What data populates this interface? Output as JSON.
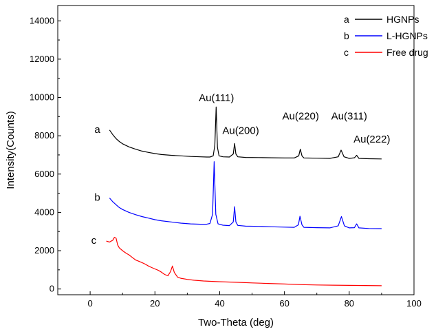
{
  "chart_data": {
    "type": "line",
    "xlabel": "Two-Theta (deg)",
    "ylabel": "Intensity(Counts)",
    "xlim": [
      -10,
      100
    ],
    "ylim": [
      -300,
      14800
    ],
    "xticks": [
      0,
      20,
      40,
      60,
      80,
      100
    ],
    "yticks": [
      0,
      2000,
      4000,
      6000,
      8000,
      10000,
      12000,
      14000
    ],
    "legend_position": "top-right",
    "grid": false,
    "series": [
      {
        "name": "HGNPs",
        "legend_key": "a",
        "tag": "a",
        "color": "#000000",
        "points": [
          [
            6,
            8300
          ],
          [
            7,
            8050
          ],
          [
            8,
            7850
          ],
          [
            9,
            7700
          ],
          [
            10,
            7580
          ],
          [
            12,
            7420
          ],
          [
            14,
            7300
          ],
          [
            16,
            7200
          ],
          [
            18,
            7130
          ],
          [
            20,
            7070
          ],
          [
            22,
            7020
          ],
          [
            25,
            6980
          ],
          [
            28,
            6950
          ],
          [
            31,
            6920
          ],
          [
            34,
            6900
          ],
          [
            36,
            6890
          ],
          [
            37,
            6890
          ],
          [
            38,
            6950
          ],
          [
            38.5,
            7500
          ],
          [
            38.9,
            9500
          ],
          [
            39.3,
            7400
          ],
          [
            39.8,
            6950
          ],
          [
            41,
            6900
          ],
          [
            43,
            6890
          ],
          [
            44.2,
            7050
          ],
          [
            44.6,
            7600
          ],
          [
            45,
            7050
          ],
          [
            45.6,
            6900
          ],
          [
            48,
            6870
          ],
          [
            52,
            6860
          ],
          [
            56,
            6850
          ],
          [
            60,
            6840
          ],
          [
            63,
            6840
          ],
          [
            64.4,
            6950
          ],
          [
            64.9,
            7300
          ],
          [
            65.4,
            6950
          ],
          [
            66,
            6840
          ],
          [
            70,
            6830
          ],
          [
            74,
            6820
          ],
          [
            76.6,
            6900
          ],
          [
            77.5,
            7250
          ],
          [
            78.4,
            6900
          ],
          [
            80,
            6820
          ],
          [
            81.6,
            6850
          ],
          [
            82.3,
            6980
          ],
          [
            83,
            6820
          ],
          [
            86,
            6800
          ],
          [
            90,
            6790
          ]
        ]
      },
      {
        "name": "L-HGNPs",
        "legend_key": "b",
        "tag": "b",
        "color": "#0000ff",
        "points": [
          [
            6,
            4750
          ],
          [
            7,
            4550
          ],
          [
            8,
            4400
          ],
          [
            9,
            4250
          ],
          [
            10,
            4150
          ],
          [
            12,
            4000
          ],
          [
            14,
            3880
          ],
          [
            16,
            3780
          ],
          [
            18,
            3700
          ],
          [
            20,
            3620
          ],
          [
            22,
            3560
          ],
          [
            25,
            3500
          ],
          [
            28,
            3440
          ],
          [
            31,
            3400
          ],
          [
            34,
            3380
          ],
          [
            36,
            3380
          ],
          [
            37,
            3420
          ],
          [
            37.8,
            3900
          ],
          [
            38.3,
            6650
          ],
          [
            38.8,
            3900
          ],
          [
            39.5,
            3400
          ],
          [
            41,
            3330
          ],
          [
            43,
            3310
          ],
          [
            44.2,
            3500
          ],
          [
            44.6,
            4300
          ],
          [
            45,
            3500
          ],
          [
            45.6,
            3320
          ],
          [
            48,
            3280
          ],
          [
            52,
            3270
          ],
          [
            56,
            3250
          ],
          [
            60,
            3230
          ],
          [
            63,
            3220
          ],
          [
            64.3,
            3350
          ],
          [
            64.8,
            3800
          ],
          [
            65.4,
            3350
          ],
          [
            66,
            3220
          ],
          [
            70,
            3200
          ],
          [
            74,
            3190
          ],
          [
            76.6,
            3300
          ],
          [
            77.6,
            3780
          ],
          [
            78.5,
            3300
          ],
          [
            80,
            3190
          ],
          [
            81.6,
            3200
          ],
          [
            82.3,
            3400
          ],
          [
            83,
            3190
          ],
          [
            86,
            3160
          ],
          [
            90,
            3150
          ]
        ]
      },
      {
        "name": "Free drug",
        "legend_key": "c",
        "tag": "c",
        "color": "#ff0000",
        "points": [
          [
            5,
            2500
          ],
          [
            6,
            2450
          ],
          [
            7,
            2550
          ],
          [
            7.5,
            2700
          ],
          [
            8,
            2650
          ],
          [
            8.5,
            2300
          ],
          [
            9,
            2150
          ],
          [
            10,
            2000
          ],
          [
            11,
            1880
          ],
          [
            12,
            1780
          ],
          [
            13,
            1650
          ],
          [
            14,
            1520
          ],
          [
            15,
            1450
          ],
          [
            16,
            1380
          ],
          [
            17,
            1300
          ],
          [
            18,
            1200
          ],
          [
            19,
            1120
          ],
          [
            20,
            1050
          ],
          [
            21,
            980
          ],
          [
            22,
            880
          ],
          [
            23,
            760
          ],
          [
            24,
            690
          ],
          [
            24.8,
            900
          ],
          [
            25.4,
            1200
          ],
          [
            26,
            860
          ],
          [
            27,
            620
          ],
          [
            28,
            560
          ],
          [
            30,
            500
          ],
          [
            32,
            460
          ],
          [
            35,
            420
          ],
          [
            40,
            380
          ],
          [
            45,
            350
          ],
          [
            50,
            320
          ],
          [
            55,
            290
          ],
          [
            60,
            260
          ],
          [
            65,
            230
          ],
          [
            70,
            210
          ],
          [
            75,
            200
          ],
          [
            80,
            190
          ],
          [
            85,
            180
          ],
          [
            90,
            170
          ]
        ]
      }
    ],
    "annotations": [
      {
        "text": "Au(111)",
        "x": 39.0,
        "y": 9800
      },
      {
        "text": "Au(200)",
        "x": 46.5,
        "y": 8100
      },
      {
        "text": "Au(220)",
        "x": 65.0,
        "y": 8850
      },
      {
        "text": "Au(311)",
        "x": 80.0,
        "y": 8850
      },
      {
        "text": "Au(222)",
        "x": 87.0,
        "y": 7650
      }
    ]
  }
}
